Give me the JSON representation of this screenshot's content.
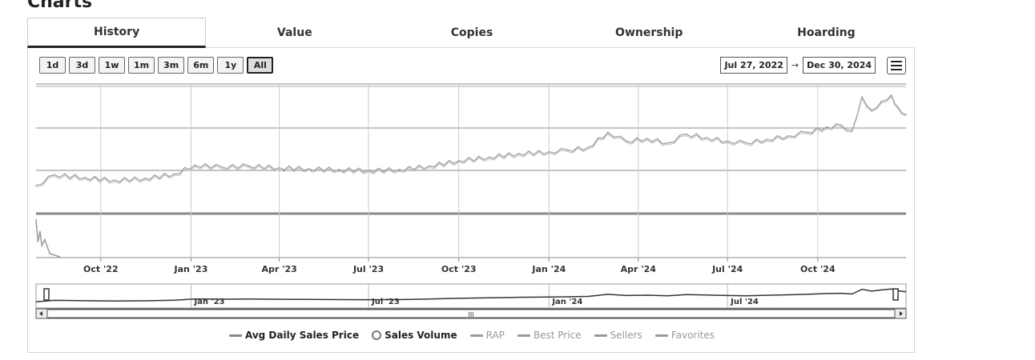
{
  "section_title": "Charts",
  "tabs": [
    "History",
    "Value",
    "Copies",
    "Ownership",
    "Hoarding"
  ],
  "active_tab": "History",
  "zoom_buttons": [
    "1d",
    "3d",
    "1w",
    "1m",
    "3m",
    "6m",
    "1y",
    "All"
  ],
  "selected_zoom": "All",
  "range": {
    "from": "Jul 27, 2022",
    "arrow": "→",
    "to": "Dec 30, 2024"
  },
  "x_ticks": [
    "Oct '22",
    "Jan '23",
    "Apr '23",
    "Jul '23",
    "Oct '23",
    "Jan '24",
    "Apr '24",
    "Jul '24",
    "Oct '24"
  ],
  "navigator_ticks": [
    "Jan '23",
    "Jul '23",
    "Jan '24",
    "Jul '24"
  ],
  "navigator_center_glyph": "III",
  "legend": [
    {
      "label": "Avg Daily Sales Price",
      "on": true,
      "icon": "line"
    },
    {
      "label": "Sales Volume",
      "on": true,
      "icon": "circle"
    },
    {
      "label": "RAP",
      "on": false,
      "icon": "line"
    },
    {
      "label": "Best Price",
      "on": false,
      "icon": "line"
    },
    {
      "label": "Sellers",
      "on": false,
      "icon": "line"
    },
    {
      "label": "Favorites",
      "on": false,
      "icon": "line"
    }
  ],
  "chart_data": {
    "type": "line",
    "title": "",
    "x_range": [
      "2022-07-27",
      "2024-12-30"
    ],
    "y_ticks_shown": false,
    "grid": true,
    "legend_position": "bottom",
    "series": [
      {
        "name": "Avg Daily Sales Price",
        "x": [
          "2022-07-27",
          "2022-08-15",
          "2022-09-15",
          "2022-10-15",
          "2022-11-15",
          "2022-12-15",
          "2023-01-05",
          "2023-02-01",
          "2023-03-01",
          "2023-04-01",
          "2023-05-01",
          "2023-06-01",
          "2023-07-01",
          "2023-08-01",
          "2023-09-01",
          "2023-10-01",
          "2023-11-01",
          "2023-12-01",
          "2024-01-01",
          "2024-01-20",
          "2024-02-10",
          "2024-03-01",
          "2024-03-20",
          "2024-04-10",
          "2024-05-01",
          "2024-05-20",
          "2024-06-10",
          "2024-07-01",
          "2024-07-20",
          "2024-08-10",
          "2024-09-01",
          "2024-09-20",
          "2024-10-10",
          "2024-10-25",
          "2024-11-05",
          "2024-11-15",
          "2024-11-25",
          "2024-12-05",
          "2024-12-15",
          "2024-12-22",
          "2024-12-30"
        ],
        "values": [
          0.3,
          0.42,
          0.39,
          0.36,
          0.38,
          0.43,
          0.53,
          0.51,
          0.52,
          0.5,
          0.49,
          0.48,
          0.47,
          0.48,
          0.52,
          0.58,
          0.62,
          0.66,
          0.68,
          0.7,
          0.73,
          0.9,
          0.8,
          0.83,
          0.78,
          0.88,
          0.84,
          0.8,
          0.78,
          0.82,
          0.86,
          0.9,
          0.96,
          0.98,
          0.92,
          1.3,
          1.15,
          1.25,
          1.32,
          1.18,
          1.1
        ]
      },
      {
        "name": "Sales Volume",
        "x": [
          "2022-07-27",
          "2022-07-29",
          "2022-07-31",
          "2022-08-02",
          "2022-08-05",
          "2022-08-10",
          "2022-08-20"
        ],
        "values": [
          0.95,
          0.4,
          0.65,
          0.3,
          0.45,
          0.1,
          0.02
        ]
      }
    ]
  },
  "colors": {
    "line": "#999999",
    "grid": "#cccccc",
    "frame": "#888888"
  }
}
